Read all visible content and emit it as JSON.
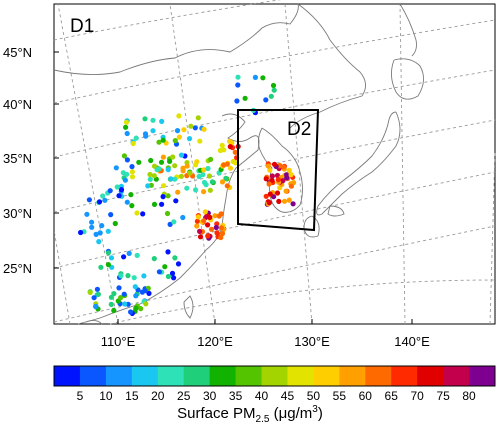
{
  "map": {
    "panel_label": "D1",
    "inner_domain_label": "D2",
    "lat_labels": [
      "45°N",
      "40°N",
      "35°N",
      "30°N",
      "25°N"
    ],
    "lon_labels": [
      "110°E",
      "120°E",
      "130°E",
      "140°E"
    ],
    "gridlines": "dashed",
    "coastline_color": "#7a7a7a"
  },
  "colorbar": {
    "tick_labels": [
      "5",
      "10",
      "15",
      "20",
      "25",
      "30",
      "35",
      "40",
      "45",
      "50",
      "55",
      "60",
      "65",
      "70",
      "75",
      "80"
    ],
    "colors": [
      "#0013ff",
      "#0a57ff",
      "#1495ff",
      "#19c7f0",
      "#2fe1b6",
      "#1fcf7a",
      "#11b300",
      "#54c400",
      "#a3d400",
      "#e3e300",
      "#ffce00",
      "#ffa000",
      "#ff6a00",
      "#ff2a00",
      "#e00000",
      "#c3004b",
      "#7e0090"
    ],
    "title_prefix": "Surface PM",
    "title_subscript": "2.5",
    "title_suffix": " (μg/m",
    "title_superscript": "3",
    "title_close": ")"
  }
}
